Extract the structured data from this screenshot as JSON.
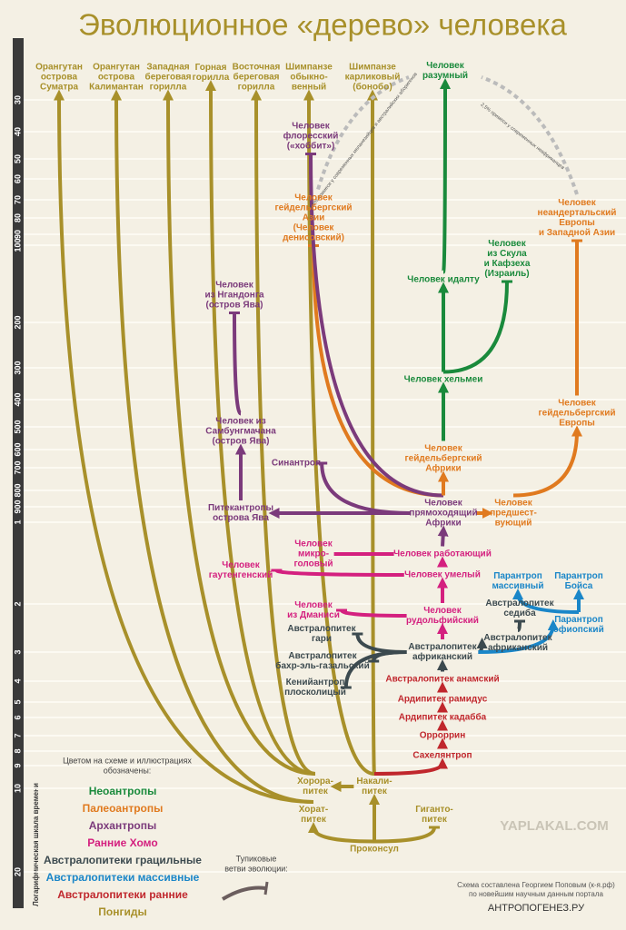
{
  "header": {
    "title": "Эволюционное «дерево» человека"
  },
  "scale": {
    "title": "Логарифмическая шкала времени",
    "ticks": [
      30,
      40,
      50,
      60,
      70,
      80,
      90,
      100,
      200,
      300,
      400,
      500,
      600,
      700,
      800,
      900,
      1,
      2,
      3,
      4,
      5,
      6,
      7,
      8,
      9,
      10,
      20
    ]
  },
  "nodes": [
    {
      "lines": [
        "Орангутан",
        "острова",
        "Суматра"
      ],
      "color": "#a8902a"
    },
    {
      "lines": [
        "Орангутан",
        "острова",
        "Калимантан"
      ],
      "color": "#a8902a"
    },
    {
      "lines": [
        "Западная",
        "береговая",
        "горилла"
      ],
      "color": "#a8902a"
    },
    {
      "lines": [
        "Горная",
        "горилла"
      ],
      "color": "#a8902a"
    },
    {
      "lines": [
        "Восточная",
        "береговая",
        "горилла"
      ],
      "color": "#a8902a"
    },
    {
      "lines": [
        "Шимпанзе",
        "обыкно-",
        "венный"
      ],
      "color": "#a8902a"
    },
    {
      "lines": [
        "Шимпанзе",
        "карликовый",
        "(бонобо)"
      ],
      "color": "#a8902a"
    },
    {
      "lines": [
        "Человек",
        "разумный"
      ],
      "color": "#1a8a3c"
    },
    {
      "lines": [
        "Человек",
        "флоресский",
        "(«хоббит»)"
      ],
      "color": "#7b3a7b"
    },
    {
      "lines": [
        "Человек",
        "гейдельбергский",
        "Азии",
        "(Человек",
        "денисовский)"
      ],
      "color": "#e07a1f"
    },
    {
      "lines": [
        "Человек",
        "неандертальский",
        "Европы",
        "и Западной Азии"
      ],
      "color": "#e07a1f"
    },
    {
      "lines": [
        "Человек",
        "из Скула",
        "и Кафзеха",
        "(Израиль)"
      ],
      "color": "#1a8a3c"
    },
    {
      "lines": [
        "Человек идалту"
      ],
      "color": "#1a8a3c"
    },
    {
      "lines": [
        "Человек",
        "из Нгандонга",
        "(остров Ява)"
      ],
      "color": "#7b3a7b"
    },
    {
      "lines": [
        "Человек хельмеи"
      ],
      "color": "#1a8a3c"
    },
    {
      "lines": [
        "Человек",
        "гейдельбергский",
        "Европы"
      ],
      "color": "#e07a1f"
    },
    {
      "lines": [
        "Человек из",
        "Самбунгмачана",
        "(остров Ява)"
      ],
      "color": "#7b3a7b"
    },
    {
      "lines": [
        "Человек",
        "гейдельбергский",
        "Африки"
      ],
      "color": "#e07a1f"
    },
    {
      "lines": [
        "Синантроп"
      ],
      "color": "#7b3a7b"
    },
    {
      "lines": [
        "Питекантропы",
        "острова Ява"
      ],
      "color": "#7b3a7b"
    },
    {
      "lines": [
        "Человек",
        "прямоходящий",
        "Африки"
      ],
      "color": "#7b3a7b"
    },
    {
      "lines": [
        "Человек",
        "предшест-",
        "вующий"
      ],
      "color": "#e07a1f"
    },
    {
      "lines": [
        "Человек работающий"
      ],
      "color": "#d4207f"
    },
    {
      "lines": [
        "Человек",
        "микро-",
        "головый"
      ],
      "color": "#d4207f"
    },
    {
      "lines": [
        "Человек",
        "гаутенгенский"
      ],
      "color": "#d4207f"
    },
    {
      "lines": [
        "Человек умелый"
      ],
      "color": "#d4207f"
    },
    {
      "lines": [
        "Человек",
        "из Дманиси"
      ],
      "color": "#d4207f"
    },
    {
      "lines": [
        "Человек",
        "рудольфийский"
      ],
      "color": "#d4207f"
    },
    {
      "lines": [
        "Парантроп",
        "массивный"
      ],
      "color": "#1a86c8"
    },
    {
      "lines": [
        "Парантроп",
        "Бойса"
      ],
      "color": "#1a86c8"
    },
    {
      "lines": [
        "Австралопитек",
        "седиба"
      ],
      "color": "#3c4a4f"
    },
    {
      "lines": [
        "Австралопитек",
        "гари"
      ],
      "color": "#3c4a4f"
    },
    {
      "lines": [
        "Австралопитек",
        "африканский"
      ],
      "color": "#3c4a4f"
    },
    {
      "lines": [
        "Австралопитек",
        "африканский"
      ],
      "color": "#3c4a4f"
    },
    {
      "lines": [
        "Парантроп",
        "эфиопский"
      ],
      "color": "#1a86c8"
    },
    {
      "lines": [
        "Австралопитек",
        "бахр-эль-газальский"
      ],
      "color": "#3c4a4f"
    },
    {
      "lines": [
        "Кенийантроп",
        "плосколицый"
      ],
      "color": "#3c4a4f"
    },
    {
      "lines": [
        "Австралопитек анамский"
      ],
      "color": "#c0272d"
    },
    {
      "lines": [
        "Ардипитек рамидус"
      ],
      "color": "#c0272d"
    },
    {
      "lines": [
        "Ардипитек кадабба"
      ],
      "color": "#c0272d"
    },
    {
      "lines": [
        "Орроррин"
      ],
      "color": "#c0272d"
    },
    {
      "lines": [
        "Сахелянтроп"
      ],
      "color": "#c0272d"
    },
    {
      "lines": [
        "Хорора-",
        "питек"
      ],
      "color": "#a8902a"
    },
    {
      "lines": [
        "Накали-",
        "питек"
      ],
      "color": "#a8902a"
    },
    {
      "lines": [
        "Хорат-",
        "питек"
      ],
      "color": "#a8902a"
    },
    {
      "lines": [
        "Гиганто-",
        "питек"
      ],
      "color": "#a8902a"
    },
    {
      "lines": [
        "Проконсул"
      ],
      "color": "#a8902a"
    }
  ],
  "admixture": [
    "4,5% примеси у современных меланезийцев и австралийских аборигенов",
    "2,5% примеси у современных неафриканцев"
  ],
  "legend": {
    "title": [
      "Цветом на схеме и иллюстрациях",
      "обозначены:"
    ],
    "items": [
      {
        "name": "Неоантропы",
        "color": "#1a8a3c"
      },
      {
        "name": "Палеоантропы",
        "color": "#e07a1f"
      },
      {
        "name": "Архантропы",
        "color": "#7b3a7b"
      },
      {
        "name": "Ранние Хомо",
        "color": "#d4207f"
      },
      {
        "name": "Австралопитеки грацильные",
        "color": "#3c4a4f"
      },
      {
        "name": "Австралопитеки массивные",
        "color": "#1a86c8"
      },
      {
        "name": "Австралопитеки ранние",
        "color": "#c0272d"
      },
      {
        "name": "Понгиды",
        "color": "#a8902a"
      }
    ],
    "deadend": [
      "Тупиковые",
      "ветви эволюции:"
    ]
  },
  "credit": {
    "lines": [
      "Схема составлена Георгием Поповым (к-я.рф)",
      "по новейшим научным данным портала"
    ],
    "site": "АНТРОПОГЕНЕЗ.РУ",
    "watermark": "YAPLAKAL.COM"
  }
}
